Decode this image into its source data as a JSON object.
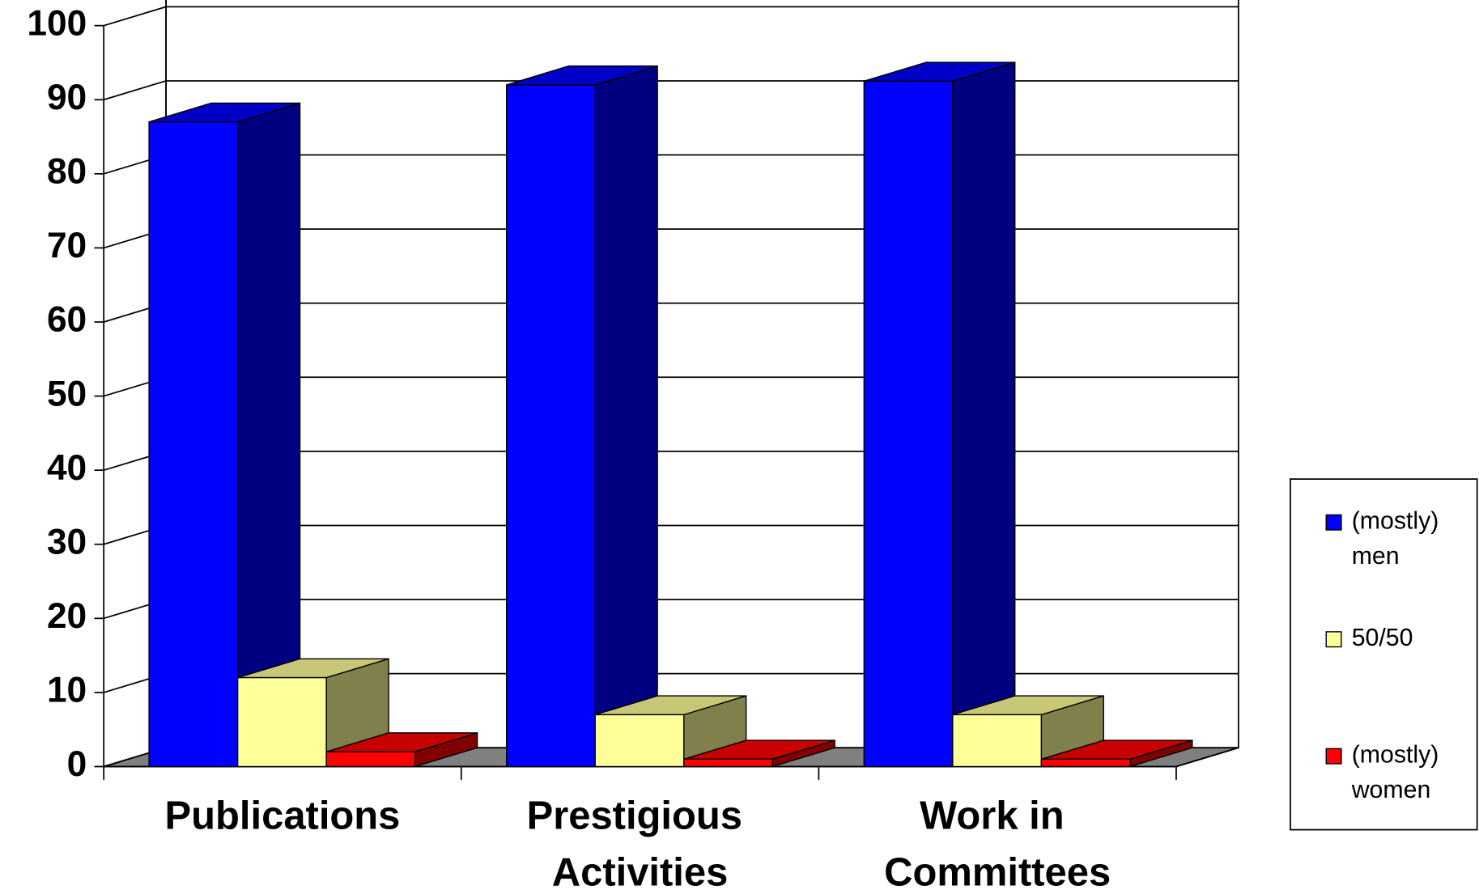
{
  "chart_data": {
    "type": "bar3d",
    "categories": [
      "Publications",
      "Prestigious Activities",
      "Work in Committees"
    ],
    "series": [
      {
        "name": "(mostly) men",
        "color": "#0000ff",
        "values": [
          87,
          92,
          92.5
        ]
      },
      {
        "name": "50/50",
        "color": "#ffff99",
        "values": [
          12,
          7,
          7
        ]
      },
      {
        "name": "(mostly) women",
        "color": "#ff0000",
        "values": [
          2,
          1,
          1
        ]
      }
    ],
    "ylim": [
      0,
      100
    ],
    "yticks": [
      0,
      10,
      20,
      30,
      40,
      50,
      60,
      70,
      80,
      90,
      100
    ],
    "grid": true,
    "legend": "right"
  }
}
